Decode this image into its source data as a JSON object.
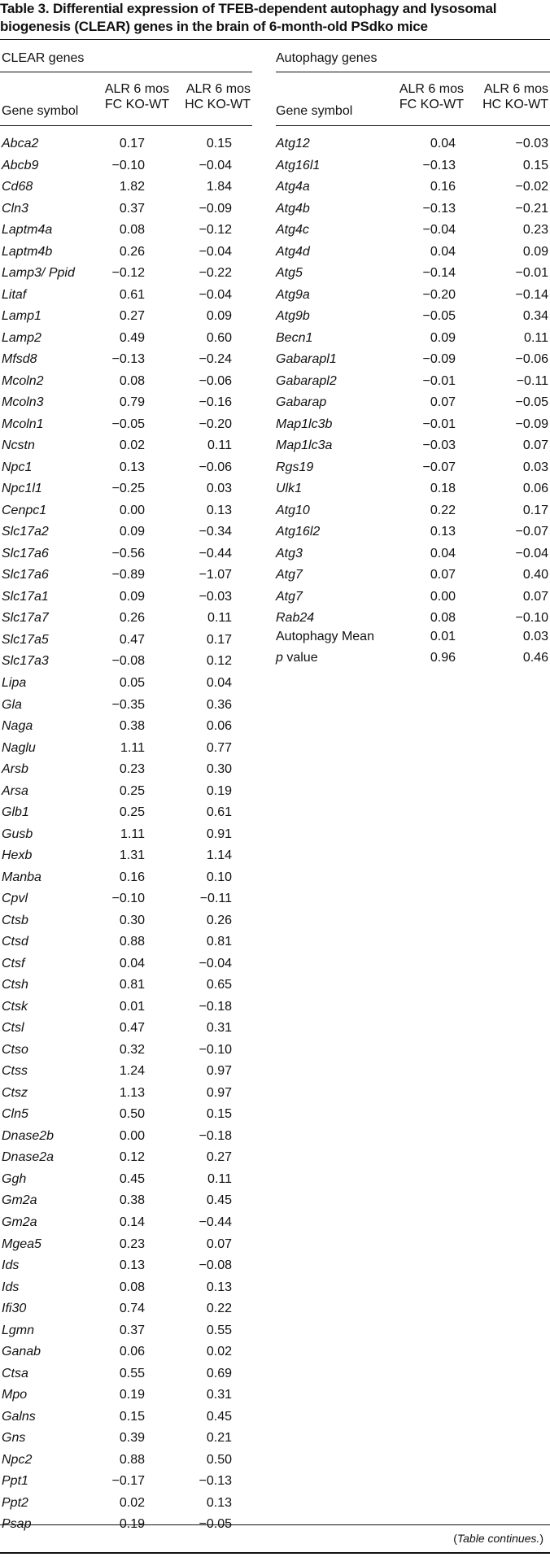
{
  "title_line1": "Table 3. Differential expression of TFEB-dependent autophagy and lysosomal",
  "title_line2": "biogenesis (CLEAR) genes in the brain of 6-month-old PSdko mice",
  "left": {
    "group": "CLEAR genes",
    "col_gene": "Gene symbol",
    "col_fc_1": "ALR 6 mos",
    "col_fc_2": "FC KO-WT",
    "col_hc_1": "ALR 6 mos",
    "col_hc_2": "HC KO-WT",
    "rows": [
      [
        "Abca2",
        "0.17",
        "0.15"
      ],
      [
        "Abcb9",
        "−0.10",
        "−0.04"
      ],
      [
        "Cd68",
        "1.82",
        "1.84"
      ],
      [
        "Cln3",
        "0.37",
        "−0.09"
      ],
      [
        "Laptm4a",
        "0.08",
        "−0.12"
      ],
      [
        "Laptm4b",
        "0.26",
        "−0.04"
      ],
      [
        "Lamp3/ Ppid",
        "−0.12",
        "−0.22"
      ],
      [
        "Litaf",
        "0.61",
        "−0.04"
      ],
      [
        "Lamp1",
        "0.27",
        "0.09"
      ],
      [
        "Lamp2",
        "0.49",
        "0.60"
      ],
      [
        "Mfsd8",
        "−0.13",
        "−0.24"
      ],
      [
        "Mcoln2",
        "0.08",
        "−0.06"
      ],
      [
        "Mcoln3",
        "0.79",
        "−0.16"
      ],
      [
        "Mcoln1",
        "−0.05",
        "−0.20"
      ],
      [
        "Ncstn",
        "0.02",
        "0.11"
      ],
      [
        "Npc1",
        "0.13",
        "−0.06"
      ],
      [
        "Npc1l1",
        "−0.25",
        "0.03"
      ],
      [
        "Cenpc1",
        "0.00",
        "0.13"
      ],
      [
        "Slc17a2",
        "0.09",
        "−0.34"
      ],
      [
        "Slc17a6",
        "−0.56",
        "−0.44"
      ],
      [
        "Slc17a6",
        "−0.89",
        "−1.07"
      ],
      [
        "Slc17a1",
        "0.09",
        "−0.03"
      ],
      [
        "Slc17a7",
        "0.26",
        "0.11"
      ],
      [
        "Slc17a5",
        "0.47",
        "0.17"
      ],
      [
        "Slc17a3",
        "−0.08",
        "0.12"
      ],
      [
        "Lipa",
        "0.05",
        "0.04"
      ],
      [
        "Gla",
        "−0.35",
        "0.36"
      ],
      [
        "Naga",
        "0.38",
        "0.06"
      ],
      [
        "Naglu",
        "1.11",
        "0.77"
      ],
      [
        "Arsb",
        "0.23",
        "0.30"
      ],
      [
        "Arsa",
        "0.25",
        "0.19"
      ],
      [
        "Glb1",
        "0.25",
        "0.61"
      ],
      [
        "Gusb",
        "1.11",
        "0.91"
      ],
      [
        "Hexb",
        "1.31",
        "1.14"
      ],
      [
        "Manba",
        "0.16",
        "0.10"
      ],
      [
        "Cpvl",
        "−0.10",
        "−0.11"
      ],
      [
        "Ctsb",
        "0.30",
        "0.26"
      ],
      [
        "Ctsd",
        "0.88",
        "0.81"
      ],
      [
        "Ctsf",
        "0.04",
        "−0.04"
      ],
      [
        "Ctsh",
        "0.81",
        "0.65"
      ],
      [
        "Ctsk",
        "0.01",
        "−0.18"
      ],
      [
        "Ctsl",
        "0.47",
        "0.31"
      ],
      [
        "Ctso",
        "0.32",
        "−0.10"
      ],
      [
        "Ctss",
        "1.24",
        "0.97"
      ],
      [
        "Ctsz",
        "1.13",
        "0.97"
      ],
      [
        "Cln5",
        "0.50",
        "0.15"
      ],
      [
        "Dnase2b",
        "0.00",
        "−0.18"
      ],
      [
        "Dnase2a",
        "0.12",
        "0.27"
      ],
      [
        "Ggh",
        "0.45",
        "0.11"
      ],
      [
        "Gm2a",
        "0.38",
        "0.45"
      ],
      [
        "Gm2a",
        "0.14",
        "−0.44"
      ],
      [
        "Mgea5",
        "0.23",
        "0.07"
      ],
      [
        "Ids",
        "0.13",
        "−0.08"
      ],
      [
        "Ids",
        "0.08",
        "0.13"
      ],
      [
        "Ifi30",
        "0.74",
        "0.22"
      ],
      [
        "Lgmn",
        "0.37",
        "0.55"
      ],
      [
        "Ganab",
        "0.06",
        "0.02"
      ],
      [
        "Ctsa",
        "0.55",
        "0.69"
      ],
      [
        "Mpo",
        "0.19",
        "0.31"
      ],
      [
        "Galns",
        "0.15",
        "0.45"
      ],
      [
        "Gns",
        "0.39",
        "0.21"
      ],
      [
        "Npc2",
        "0.88",
        "0.50"
      ],
      [
        "Ppt1",
        "−0.17",
        "−0.13"
      ],
      [
        "Ppt2",
        "0.02",
        "0.13"
      ],
      [
        "Psap",
        "0.19",
        "−0.05"
      ]
    ]
  },
  "right": {
    "group": "Autophagy genes",
    "col_gene": "Gene symbol",
    "col_fc_1": "ALR 6 mos",
    "col_fc_2": "FC KO-WT",
    "col_hc_1": "ALR 6 mos",
    "col_hc_2": "HC KO-WT",
    "rows": [
      [
        "Atg12",
        "0.04",
        "−0.03"
      ],
      [
        "Atg16l1",
        "−0.13",
        "0.15"
      ],
      [
        "Atg4a",
        "0.16",
        "−0.02"
      ],
      [
        "Atg4b",
        "−0.13",
        "−0.21"
      ],
      [
        "Atg4c",
        "−0.04",
        "0.23"
      ],
      [
        "Atg4d",
        "0.04",
        "0.09"
      ],
      [
        "Atg5",
        "−0.14",
        "−0.01"
      ],
      [
        "Atg9a",
        "−0.20",
        "−0.14"
      ],
      [
        "Atg9b",
        "−0.05",
        "0.34"
      ],
      [
        "Becn1",
        "0.09",
        "0.11"
      ],
      [
        "Gabarapl1",
        "−0.09",
        "−0.06"
      ],
      [
        "Gabarapl2",
        "−0.01",
        "−0.11"
      ],
      [
        "Gabarap",
        "0.07",
        "−0.05"
      ],
      [
        "Map1lc3b",
        "−0.01",
        "−0.09"
      ],
      [
        "Map1lc3a",
        "−0.03",
        "0.07"
      ],
      [
        "Rgs19",
        "−0.07",
        "0.03"
      ],
      [
        "Ulk1",
        "0.18",
        "0.06"
      ],
      [
        "Atg10",
        "0.22",
        "0.17"
      ],
      [
        "Atg16l2",
        "0.13",
        "−0.07"
      ],
      [
        "Atg3",
        "0.04",
        "−0.04"
      ],
      [
        "Atg7",
        "0.07",
        "0.40"
      ],
      [
        "Atg7",
        "0.00",
        "0.07"
      ],
      [
        "Rab24",
        "0.08",
        "−0.10"
      ]
    ],
    "mean_label": "Autophagy Mean",
    "mean_fc": "0.01",
    "mean_hc": "0.03",
    "p_label_italic": "p",
    "p_label_rest": " value",
    "p_fc": "0.96",
    "p_hc": "0.46"
  },
  "footnote_open": "(",
  "footnote_italic": "Table continues.",
  "footnote_close": ")"
}
